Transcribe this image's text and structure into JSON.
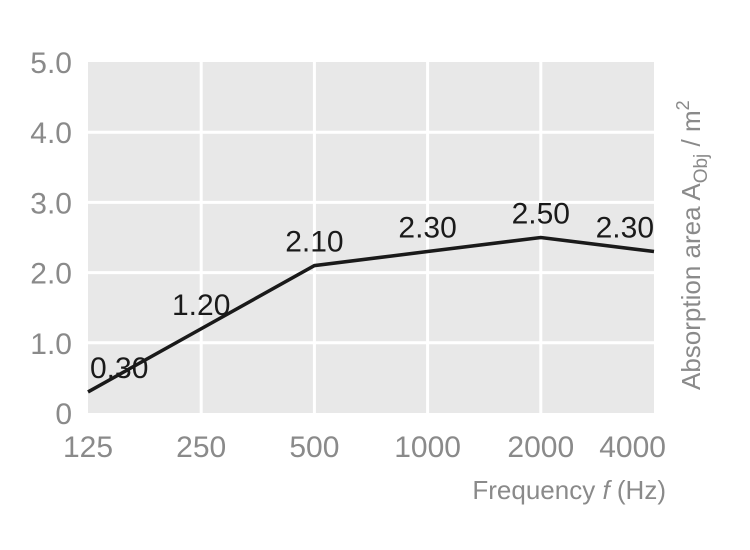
{
  "chart_data": {
    "type": "line",
    "x": [
      "125",
      "250",
      "500",
      "1000",
      "2000",
      "4000"
    ],
    "values": [
      0.3,
      1.2,
      2.1,
      2.3,
      2.5,
      2.3
    ],
    "data_labels": [
      "0.30",
      "1.20",
      "2.10",
      "2.30",
      "2.50",
      "2.30"
    ],
    "y_ticks": [
      "0",
      "1.0",
      "2.0",
      "3.0",
      "4.0",
      "5.0"
    ],
    "ylim": [
      0,
      5
    ],
    "xlabel": {
      "prefix": "Frequency ",
      "var": "f",
      "suffix": " (Hz)"
    },
    "ylabel": {
      "prefix": "Absorption area A",
      "sub": "Obj",
      "suffix": " / m",
      "sup": "2"
    },
    "grid": true,
    "colors": {
      "plot_background": "#e8e8e8",
      "grid": "#ffffff",
      "line": "#1a1a1a",
      "axis_text": "#8a8a8a",
      "label_text": "#1a1a1a"
    }
  }
}
